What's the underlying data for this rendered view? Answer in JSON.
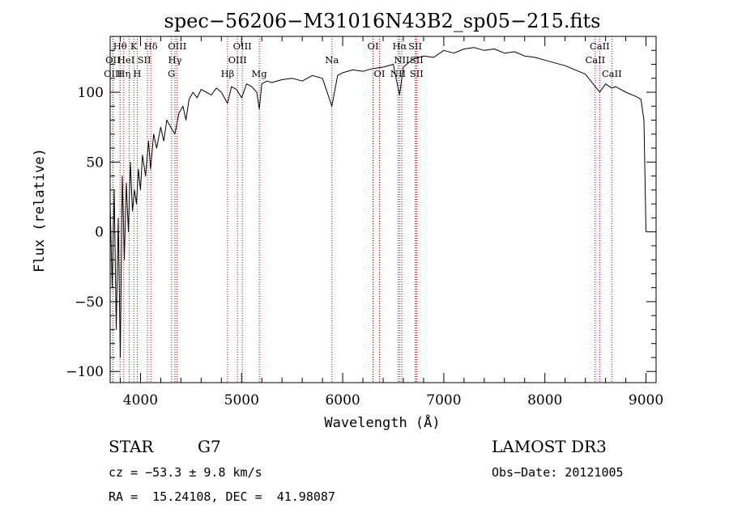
{
  "chart_data": {
    "type": "line",
    "title": "spec−56206−M31016N43B2_sp05−215.fits",
    "xlabel": "Wavelength (Å)",
    "ylabel": "Flux (relative)",
    "xlim": [
      3700,
      9100
    ],
    "ylim": [
      -108,
      140
    ],
    "xticks": [
      4000,
      5000,
      6000,
      7000,
      8000,
      9000
    ],
    "xtick_labels": [
      "4000",
      "5000",
      "6000",
      "7000",
      "8000",
      "9000"
    ],
    "yticks": [
      -100,
      -50,
      0,
      50,
      100
    ],
    "ytick_labels": [
      "−100",
      "−50",
      "0",
      "50",
      "100"
    ],
    "series": [
      {
        "name": "flux",
        "x": [
          3700,
          3720,
          3740,
          3760,
          3780,
          3800,
          3820,
          3840,
          3860,
          3880,
          3900,
          3920,
          3940,
          3960,
          3980,
          4000,
          4020,
          4050,
          4080,
          4100,
          4130,
          4160,
          4200,
          4230,
          4260,
          4300,
          4340,
          4380,
          4420,
          4450,
          4480,
          4520,
          4560,
          4600,
          4650,
          4700,
          4750,
          4800,
          4861,
          4900,
          4950,
          5000,
          5050,
          5100,
          5150,
          5175,
          5200,
          5250,
          5300,
          5400,
          5500,
          5600,
          5700,
          5800,
          5893,
          5950,
          6000,
          6100,
          6200,
          6300,
          6400,
          6500,
          6563,
          6600,
          6700,
          6800,
          6900,
          7000,
          7100,
          7200,
          7300,
          7400,
          7500,
          7600,
          7700,
          7800,
          7900,
          8000,
          8100,
          8200,
          8300,
          8400,
          8498,
          8542,
          8600,
          8662,
          8700,
          8800,
          8900,
          8950,
          8980,
          9000
        ],
        "values": [
          20,
          -40,
          30,
          -70,
          10,
          -90,
          40,
          -20,
          35,
          0,
          50,
          15,
          30,
          20,
          45,
          30,
          55,
          40,
          65,
          45,
          70,
          60,
          75,
          65,
          80,
          75,
          70,
          85,
          90,
          80,
          95,
          100,
          96,
          102,
          100,
          98,
          103,
          100,
          92,
          104,
          102,
          96,
          106,
          104,
          100,
          88,
          106,
          108,
          107,
          109,
          110,
          108,
          112,
          110,
          90,
          112,
          114,
          116,
          115,
          117,
          118,
          120,
          98,
          118,
          124,
          126,
          125,
          130,
          128,
          131,
          132,
          130,
          131,
          128,
          129,
          126,
          125,
          123,
          121,
          119,
          116,
          113,
          104,
          100,
          106,
          103,
          104,
          100,
          97,
          95,
          80,
          0
        ]
      }
    ],
    "lines": [
      {
        "name": "Hθ",
        "wavelength": 3798,
        "row": 0,
        "dx": 0
      },
      {
        "name": "OII",
        "wavelength": 3727,
        "row": 1,
        "dx": 0
      },
      {
        "name": "OIII",
        "wavelength": 3729,
        "row": 2,
        "dx": 0
      },
      {
        "name": "K",
        "wavelength": 3934,
        "row": 0,
        "dx": 0
      },
      {
        "name": "Hδ",
        "wavelength": 4102,
        "row": 0,
        "dx": 0
      },
      {
        "name": "HeI",
        "wavelength": 3889,
        "row": 1,
        "dx": -4
      },
      {
        "name": "SII",
        "wavelength": 4069,
        "row": 1,
        "dx": -4
      },
      {
        "name": "Hη",
        "wavelength": 3835,
        "row": 2,
        "dx": 0
      },
      {
        "name": "H",
        "wavelength": 3968,
        "row": 2,
        "dx": 0
      },
      {
        "name": "OIII",
        "wavelength": 4363,
        "row": 0,
        "dx": 0
      },
      {
        "name": "Hγ",
        "wavelength": 4341,
        "row": 1,
        "dx": 0
      },
      {
        "name": "G",
        "wavelength": 4307,
        "row": 2,
        "dx": 0
      },
      {
        "name": "OIII",
        "wavelength": 5007,
        "row": 0,
        "dx": 0
      },
      {
        "name": "OIII",
        "wavelength": 4959,
        "row": 1,
        "dx": 0
      },
      {
        "name": "Hβ",
        "wavelength": 4861,
        "row": 2,
        "dx": 0
      },
      {
        "name": "Mg",
        "wavelength": 5175,
        "row": 2,
        "dx": 0
      },
      {
        "name": "Na",
        "wavelength": 5893,
        "row": 1,
        "dx": 0
      },
      {
        "name": "OI",
        "wavelength": 6300,
        "row": 0,
        "dx": 0
      },
      {
        "name": "OI",
        "wavelength": 6364,
        "row": 2,
        "dx": 0
      },
      {
        "name": "Hα",
        "wavelength": 6563,
        "row": 0,
        "dx": 0
      },
      {
        "name": "SII",
        "wavelength": 6717,
        "row": 0,
        "dx": 0
      },
      {
        "name": "NII",
        "wavelength": 6584,
        "row": 1,
        "dx": 0
      },
      {
        "name": "SII",
        "wavelength": 6731,
        "row": 1,
        "dx": 0
      },
      {
        "name": "NII",
        "wavelength": 6548,
        "row": 2,
        "dx": 0
      },
      {
        "name": "SII",
        "wavelength": 6731,
        "row": 2,
        "dx": 0
      },
      {
        "name": "CaII",
        "wavelength": 8542,
        "row": 0,
        "dx": 0
      },
      {
        "name": "CaII",
        "wavelength": 8498,
        "row": 1,
        "dx": 0
      },
      {
        "name": "CaII",
        "wavelength": 8662,
        "row": 2,
        "dx": 0
      }
    ]
  },
  "info": {
    "object_class": "STAR",
    "subclass": "G7",
    "survey": "LAMOST DR3",
    "redshift": "cz = −53.3 ± 9.8 km/s",
    "obs_date": "Obs−Date: 20121005",
    "coords": "RA =  15.24108, DEC =  41.98087"
  },
  "colors": {
    "spectrum": "#000000",
    "line_marker": "#b00000",
    "background": "#ffffff"
  }
}
